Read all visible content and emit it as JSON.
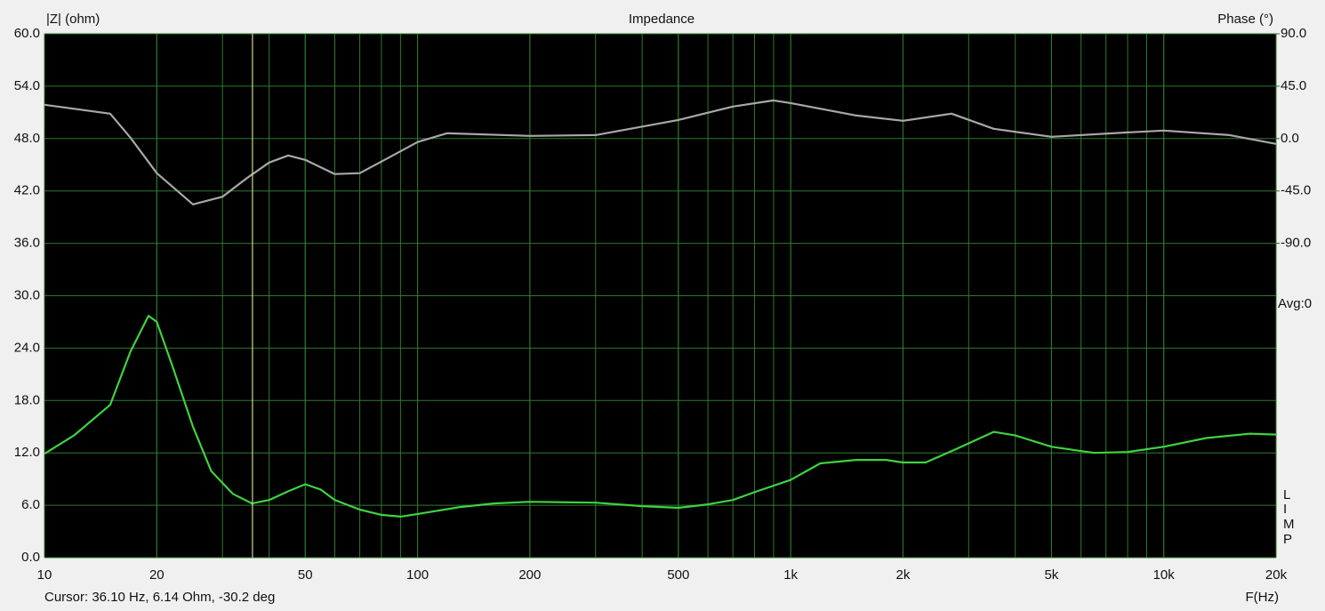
{
  "chart_data": {
    "type": "line",
    "title": "Impedance",
    "y_label": "|Z| (ohm)",
    "y2_label": "Phase (°)",
    "x_label": "F(Hz)",
    "annotations": [
      "Avg:0",
      "L",
      "I",
      "M",
      "P"
    ],
    "cursor": {
      "label": "Cursor: 36.10 Hz, 6.14 Ohm, -30.2 deg",
      "x": 36.1,
      "color": "#d8d48c"
    },
    "log_x": true,
    "grid": true,
    "xlim": [
      10,
      20000
    ],
    "xticks": [
      10,
      20,
      50,
      100,
      200,
      500,
      {
        "value": 1000,
        "label": "1k"
      },
      {
        "value": 2000,
        "label": "2k"
      },
      {
        "value": 5000,
        "label": "5k"
      },
      {
        "value": 10000,
        "label": "10k"
      },
      {
        "value": 20000,
        "label": "20k"
      }
    ],
    "ylim": [
      0,
      60
    ],
    "yticks": [
      {
        "value": 0,
        "label": "0.0"
      },
      {
        "value": 6,
        "label": "6.0"
      },
      {
        "value": 12,
        "label": "12.0"
      },
      {
        "value": 18,
        "label": "18.0"
      },
      {
        "value": 24,
        "label": "24.0"
      },
      {
        "value": 30,
        "label": "30.0"
      },
      {
        "value": 36,
        "label": "36.0"
      },
      {
        "value": 42,
        "label": "42.0"
      },
      {
        "value": 48,
        "label": "48.0"
      },
      {
        "value": 54,
        "label": "54.0"
      },
      {
        "value": 60,
        "label": "60.0"
      }
    ],
    "y2lim": [
      -360,
      90
    ],
    "y2ticks": [
      {
        "value": -90,
        "label": "-90.0"
      },
      {
        "value": -45,
        "label": "-45.0"
      },
      {
        "value": 0,
        "label": "0.0"
      },
      {
        "value": 45,
        "label": "45.0"
      },
      {
        "value": 90,
        "label": "90.0"
      }
    ],
    "series": [
      {
        "color": "#3fd23f",
        "x": [
          10,
          12,
          15,
          17,
          19,
          20,
          22,
          25,
          28,
          32,
          36,
          40,
          45,
          50,
          55,
          60,
          70,
          80,
          90,
          100,
          130,
          160,
          200,
          300,
          400,
          500,
          600,
          700,
          800,
          1000,
          1200,
          1500,
          1800,
          2000,
          2300,
          2800,
          3500,
          4000,
          5000,
          6500,
          8000,
          10000,
          13000,
          17000,
          20000
        ],
        "values": [
          11.9,
          14,
          17.5,
          23.6,
          27.7,
          27,
          22,
          15,
          9.9,
          7.3,
          6.2,
          6.6,
          7.6,
          8.4,
          7.8,
          6.6,
          5.5,
          4.9,
          4.7,
          5.0,
          5.8,
          6.2,
          6.4,
          6.3,
          5.9,
          5.7,
          6.1,
          6.6,
          7.5,
          8.9,
          10.8,
          11.2,
          11.2,
          10.9,
          10.9,
          12.5,
          14.4,
          14,
          12.7,
          12.0,
          12.1,
          12.7,
          13.7,
          14.2,
          14.1
        ]
      },
      {
        "color": "#a8a8a8",
        "axis": "y2",
        "x": [
          10,
          15,
          17,
          20,
          25,
          30,
          35,
          40,
          45,
          50,
          60,
          70,
          80,
          100,
          120,
          200,
          300,
          500,
          700,
          900,
          1000,
          1500,
          2000,
          2700,
          3500,
          5000,
          8000,
          10000,
          15000,
          20000
        ],
        "values": [
          29,
          21.4,
          0.8,
          -29.7,
          -56.5,
          -50,
          -33.6,
          -20.6,
          -14.5,
          -18.3,
          -30.5,
          -29.7,
          -19.8,
          -3,
          4.6,
          2.3,
          3,
          16,
          27.5,
          32.8,
          30.5,
          19.8,
          15.3,
          21.4,
          8.4,
          1.5,
          5.3,
          6.9,
          3,
          -4.6
        ]
      }
    ]
  }
}
